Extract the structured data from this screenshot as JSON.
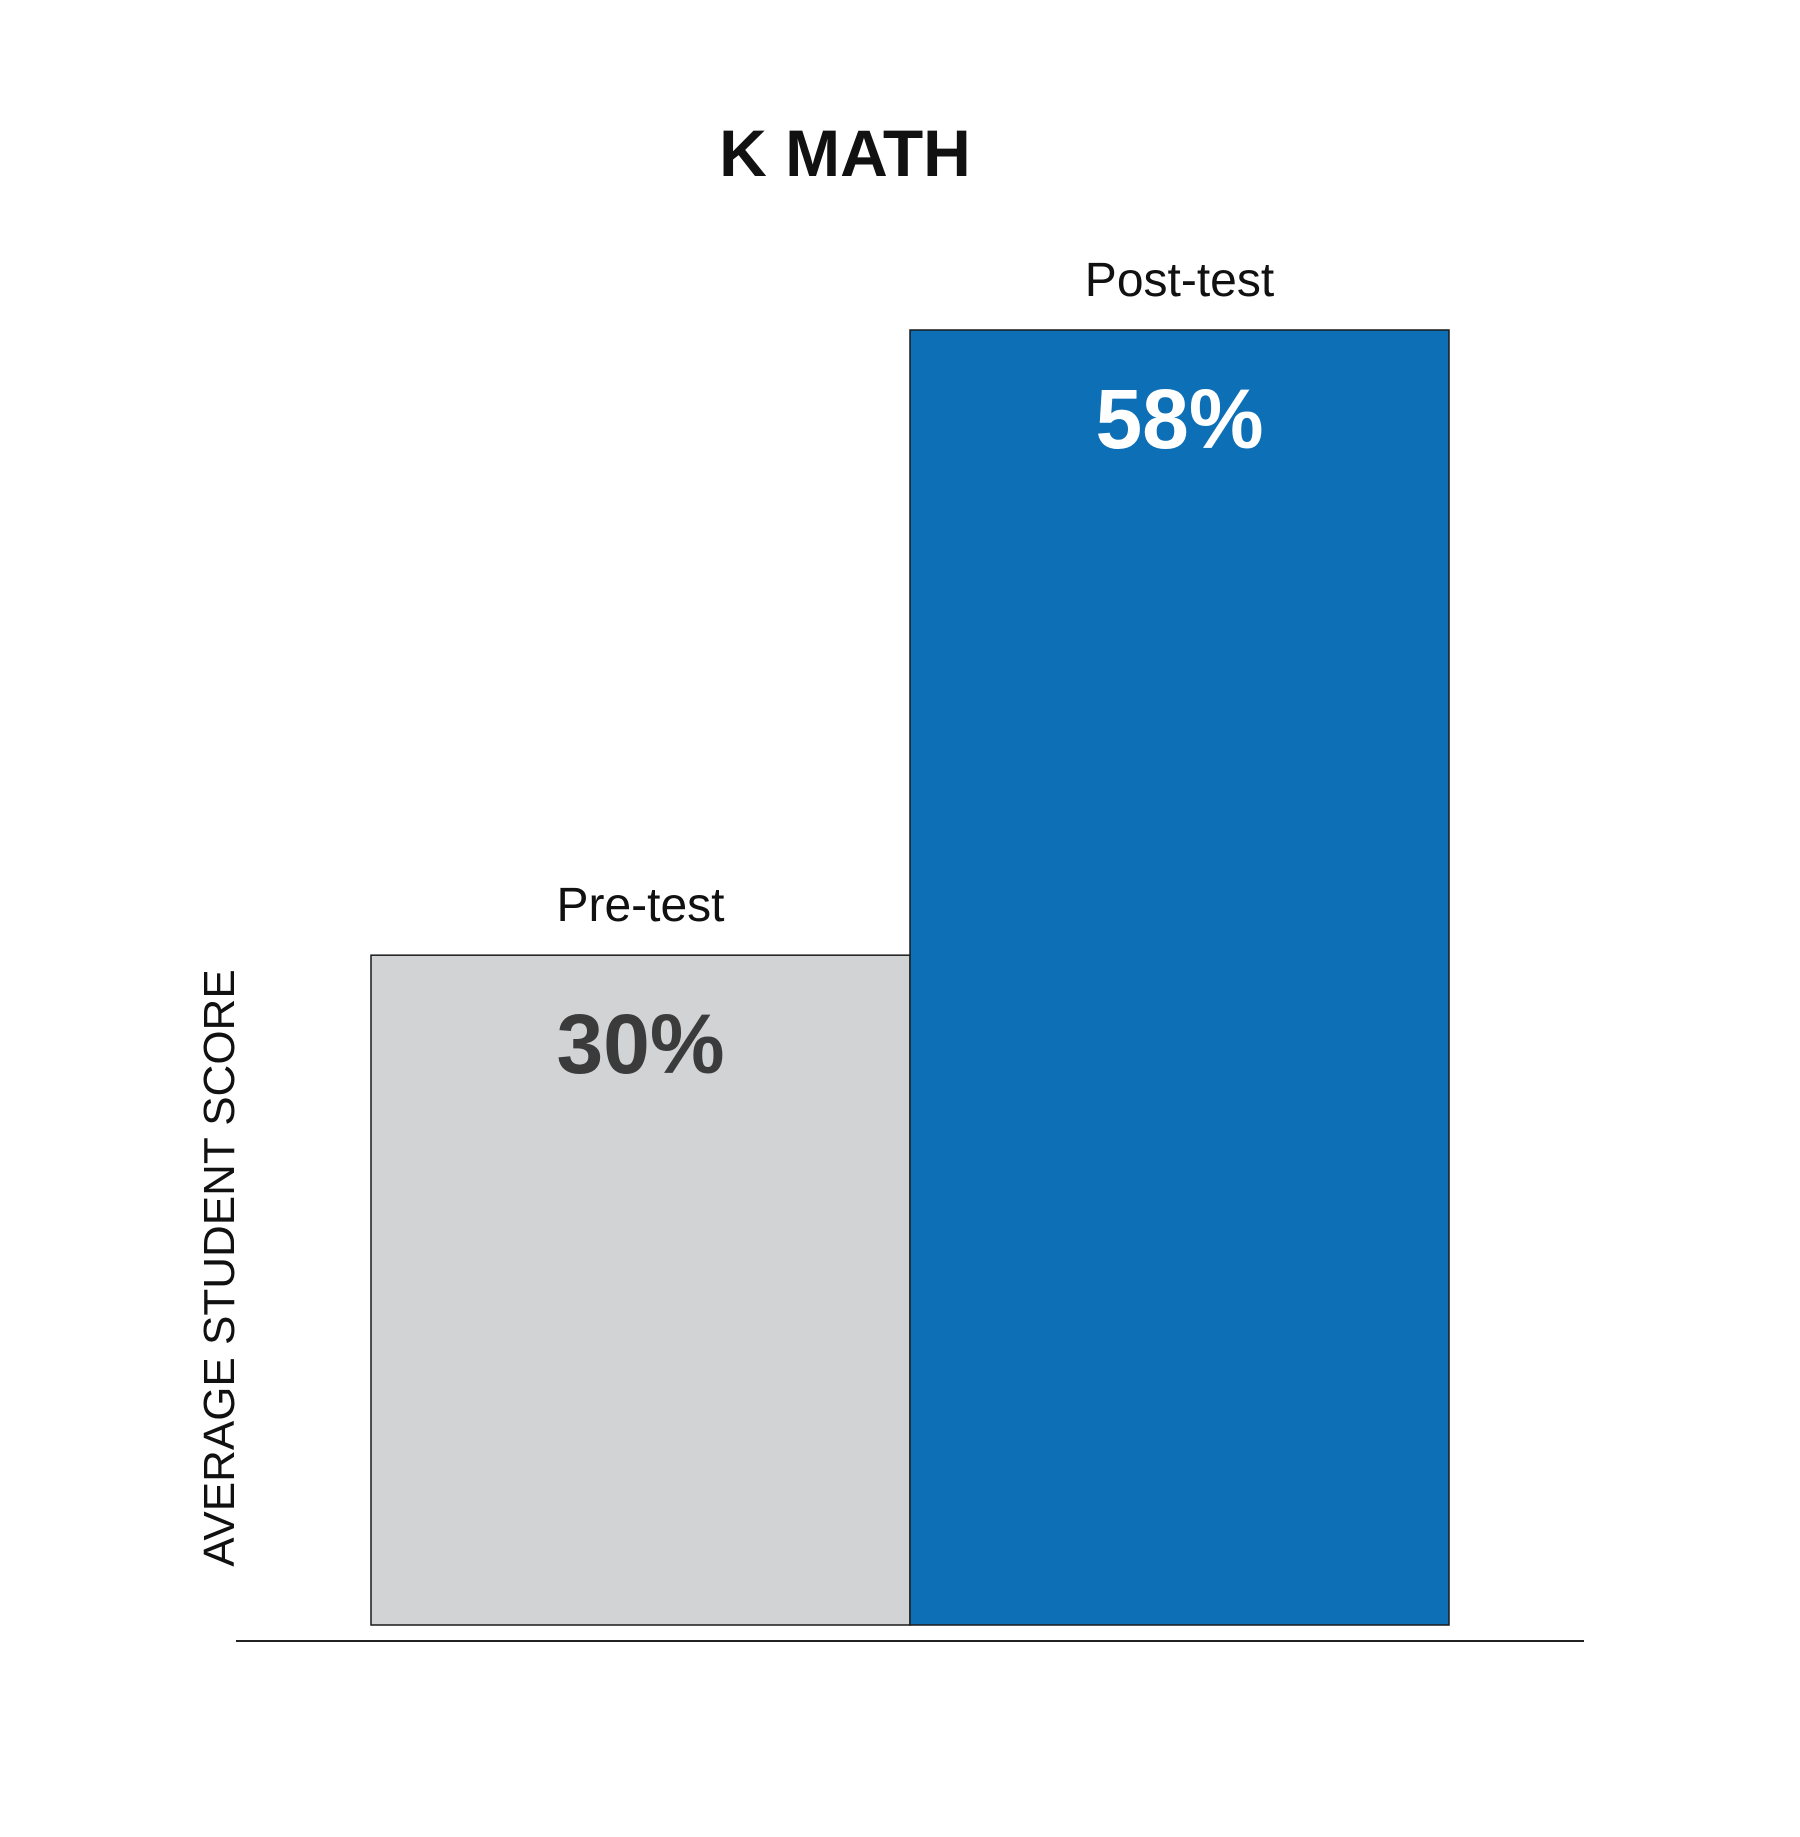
{
  "chart_data": {
    "type": "bar",
    "title": "K MATH",
    "ylabel": "AVERAGE STUDENT SCORE",
    "xlabel": "",
    "categories": [
      "Pre-test",
      "Post-test"
    ],
    "values": [
      30,
      58
    ],
    "value_labels": [
      "30%",
      "58%"
    ],
    "ylim": [
      0,
      60
    ],
    "grid": false,
    "legend": "none",
    "colors": [
      "#d1d3d4",
      "#0d6fb6"
    ],
    "value_label_colors": [
      "#3b3b3b",
      "#ffffff"
    ]
  }
}
